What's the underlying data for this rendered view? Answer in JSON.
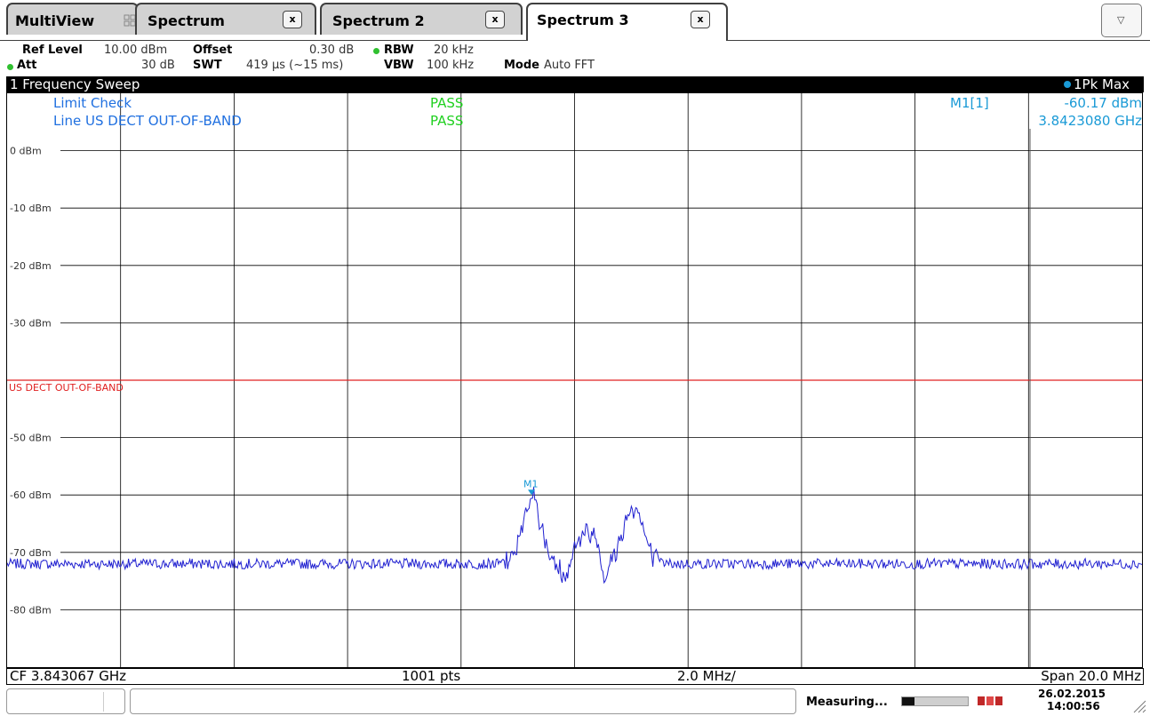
{
  "tabs": [
    {
      "label": "MultiView"
    },
    {
      "label": "Spectrum",
      "close": "x"
    },
    {
      "label": "Spectrum 2",
      "close": "x"
    },
    {
      "label": "Spectrum 3",
      "close": "x"
    }
  ],
  "dropdown_icon": "▽",
  "settings": {
    "ref_level_label": "Ref Level",
    "ref_level_value": "10.00 dBm",
    "att_label": "Att",
    "att_value": "30 dB",
    "offset_label": "Offset",
    "offset_value": "0.30 dB",
    "swt_label": "SWT",
    "swt_value": "419 µs (~15 ms)",
    "rbw_label": "RBW",
    "rbw_value": "20 kHz",
    "vbw_label": "VBW",
    "vbw_value": "100 kHz",
    "mode_label": "Mode",
    "mode_value": "Auto FFT"
  },
  "window": {
    "title": "1 Frequency Sweep",
    "trace": "1Pk Max"
  },
  "limit": {
    "check_label": "Limit Check",
    "check_result": "PASS",
    "line_label": "Line US DECT OUT-OF-BAND",
    "line_result": "PASS",
    "line_name": "US DECT OUT-OF-BAND"
  },
  "marker": {
    "name": "M1[1]",
    "level": "-60.17 dBm",
    "freq": "3.8423080 GHz",
    "label": "M1"
  },
  "footer": {
    "cf": "CF 3.843067 GHz",
    "pts": "1001 pts",
    "div": "2.0 MHz/",
    "span": "Span 20.0 MHz"
  },
  "status": {
    "measuring": "Measuring...",
    "date": "26.02.2015",
    "time": "14:00:56"
  },
  "colors": {
    "trace": "#2020d0",
    "limit": "#e02020",
    "marker": "#1a9ad6",
    "pass": "#20d020",
    "limit_text": "#2070e0"
  },
  "chart_data": {
    "type": "line",
    "ylabels": [
      "0 dBm",
      "-10 dBm",
      "-20 dBm",
      "-30 dBm",
      "-50 dBm",
      "-60 dBm",
      "-70 dBm",
      "-80 dBm"
    ],
    "y_values": [
      0,
      -10,
      -20,
      -30,
      -50,
      -60,
      -70,
      -80
    ],
    "ylim": [
      -90,
      10
    ],
    "xlim_mhz": [
      3833.067,
      3853.067
    ],
    "limit_level": -40,
    "marker_point": {
      "freq_mhz": 3842.308,
      "level": -60.17
    },
    "trace": {
      "name": "1Pk Max",
      "baseline": -72,
      "peaks": [
        {
          "freq_mhz": 3842.31,
          "level": -60.2
        },
        {
          "freq_mhz": 3844.1,
          "level": -62.0
        },
        {
          "freq_mhz": 3843.3,
          "level": -66.5
        }
      ]
    }
  }
}
